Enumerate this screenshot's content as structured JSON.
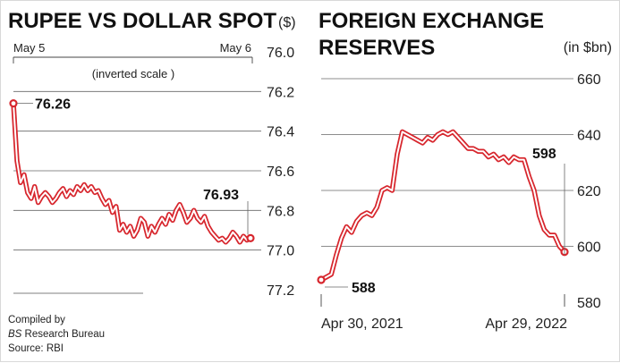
{
  "chart_data": [
    {
      "type": "line",
      "title": "RUPEE VS DOLLAR SPOT",
      "unit": "($)",
      "scale_note": "(inverted scale )",
      "x_start_label": "May 5",
      "x_end_label": "May 6",
      "ylim": [
        76.0,
        77.2
      ],
      "inverted": true,
      "y_ticks": [
        "76.0",
        "76.2",
        "76.4",
        "76.6",
        "76.8",
        "77.0",
        "77.2"
      ],
      "grid": true,
      "annotations": [
        {
          "text": "76.26",
          "value": 76.26
        },
        {
          "text": "76.93",
          "value": 76.93
        }
      ],
      "color": "#d7262d",
      "series": [
        {
          "values": [
            76.26,
            76.55,
            76.66,
            76.62,
            76.71,
            76.74,
            76.68,
            76.76,
            76.73,
            76.71,
            76.73,
            76.76,
            76.74,
            76.71,
            76.69,
            76.73,
            76.7,
            76.72,
            76.68,
            76.7,
            76.67,
            76.7,
            76.68,
            76.71,
            76.7,
            76.74,
            76.77,
            76.75,
            76.81,
            76.78,
            76.9,
            76.87,
            76.91,
            76.88,
            76.93,
            76.9,
            76.84,
            76.86,
            76.93,
            76.88,
            76.91,
            76.87,
            76.84,
            76.87,
            76.82,
            76.85,
            76.8,
            76.77,
            76.81,
            76.86,
            76.84,
            76.8,
            76.84,
            76.86,
            76.83,
            76.88,
            76.91,
            76.93,
            76.95,
            76.94,
            76.96,
            76.94,
            76.91,
            76.93,
            76.96,
            76.93,
            76.95,
            76.94
          ]
        }
      ]
    },
    {
      "type": "line",
      "title_line1": "FOREIGN EXCHANGE",
      "title_line2": "RESERVES",
      "unit": "(in $bn)",
      "x_start_label": "Apr 30, 2021",
      "x_end_label": "Apr 29, 2022",
      "ylim": [
        580,
        660
      ],
      "y_ticks": [
        "660",
        "640",
        "620",
        "600",
        "580"
      ],
      "grid": true,
      "annotations": [
        {
          "text": "588",
          "value": 588
        },
        {
          "text": "598",
          "value": 598
        }
      ],
      "color": "#d7262d",
      "series": [
        {
          "values": [
            588,
            589,
            590,
            597,
            603,
            607,
            605,
            609,
            611,
            612,
            611,
            614,
            620,
            621,
            620,
            633,
            641,
            640,
            639,
            638,
            637,
            639,
            638,
            640,
            641,
            640,
            641,
            639,
            637,
            635,
            635,
            634,
            634,
            632,
            633,
            631,
            632,
            630,
            632,
            631,
            631,
            625,
            620,
            611,
            606,
            604,
            604,
            600,
            598
          ]
        }
      ]
    }
  ],
  "footer": {
    "line1": "Compiled by",
    "line2_italic": "BS",
    "line2_rest": " Research Bureau",
    "line3": "Source: RBI"
  }
}
